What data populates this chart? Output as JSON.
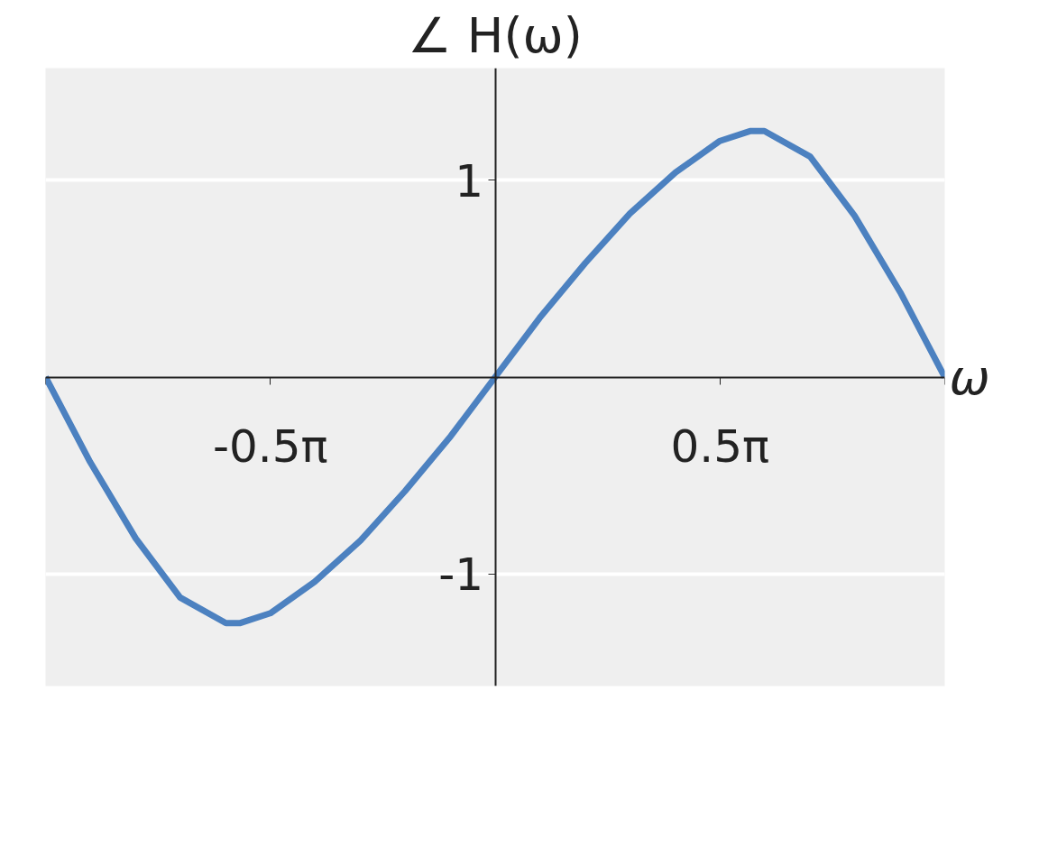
{
  "chart_data": {
    "type": "line",
    "title": "∠ H(ω)",
    "xlabel": "ω",
    "x": [
      -3.14,
      -2.83,
      -2.51,
      -2.2,
      -1.88,
      -1.78,
      -1.57,
      -1.26,
      -0.94,
      -0.63,
      -0.31,
      0.0,
      0.31,
      0.63,
      0.94,
      1.26,
      1.57,
      1.78,
      1.88,
      2.2,
      2.51,
      2.83,
      3.14
    ],
    "series": [
      {
        "color": "#4c81c0",
        "values": [
          0.0,
          -0.43,
          -0.82,
          -1.12,
          -1.25,
          -1.25,
          -1.2,
          -1.04,
          -0.83,
          -0.58,
          -0.3,
          0.0,
          0.3,
          0.58,
          0.83,
          1.04,
          1.2,
          1.25,
          1.25,
          1.12,
          0.82,
          0.43,
          0.0
        ]
      }
    ],
    "xlim": [
      -3.14,
      3.14
    ],
    "ylim": [
      -1.57,
      1.57
    ],
    "xticks": [
      {
        "value": -3.14,
        "label": null
      },
      {
        "value": -1.57,
        "label": "-0.5π"
      },
      {
        "value": 1.57,
        "label": "0.5π"
      },
      {
        "value": 3.14,
        "label": null
      }
    ],
    "yticks": [
      1,
      -1
    ],
    "grid": "y",
    "marker": "none",
    "line_style": "solid"
  }
}
